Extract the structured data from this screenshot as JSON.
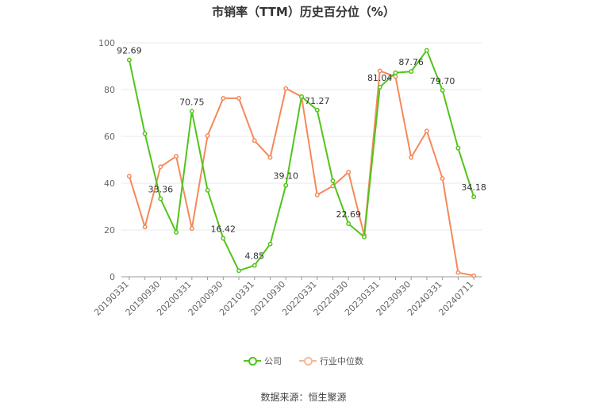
{
  "chart_data": {
    "type": "line",
    "title": "市销率（TTM）历史百分位（%）",
    "ylim": [
      0,
      100
    ],
    "yticks": [
      0,
      20,
      40,
      60,
      80,
      100
    ],
    "x": [
      "20190331",
      "20190630",
      "20190930",
      "20191231",
      "20200331",
      "20200630",
      "20200930",
      "20201231",
      "20210331",
      "20210630",
      "20210930",
      "20211231",
      "20220331",
      "20220630",
      "20220930",
      "20221231",
      "20230331",
      "20230630",
      "20230930",
      "20231231",
      "20240331",
      "20240630",
      "20240711"
    ],
    "xtick_labels": [
      "20190331",
      "20190930",
      "20200331",
      "20200930",
      "20210331",
      "20210930",
      "20220331",
      "20220930",
      "20230331",
      "20230930",
      "20240331",
      "20240711"
    ],
    "series": [
      {
        "name": "公司",
        "color": "#52c41a",
        "values": [
          92.69,
          61.2,
          33.36,
          19.0,
          70.75,
          37.0,
          16.42,
          2.6,
          4.85,
          14.0,
          39.1,
          77.0,
          71.27,
          41.0,
          22.69,
          17.0,
          81.04,
          87.2,
          87.76,
          96.8,
          79.7,
          55.0,
          34.18
        ],
        "labels": [
          true,
          false,
          true,
          false,
          true,
          false,
          true,
          false,
          true,
          false,
          true,
          false,
          true,
          false,
          true,
          false,
          true,
          false,
          true,
          false,
          true,
          false,
          true
        ]
      },
      {
        "name": "行业中位数",
        "color": "#f5895a",
        "values": [
          43.0,
          21.3,
          47.0,
          51.5,
          20.6,
          60.3,
          76.3,
          76.3,
          58.2,
          51.0,
          80.5,
          77.0,
          35.0,
          38.8,
          44.7,
          17.8,
          88.0,
          85.6,
          51.0,
          62.3,
          42.0,
          1.8,
          0.5
        ]
      }
    ]
  },
  "legend": {
    "company": "公司",
    "industry": "行业中位数"
  },
  "source": "数据来源：恒生聚源"
}
